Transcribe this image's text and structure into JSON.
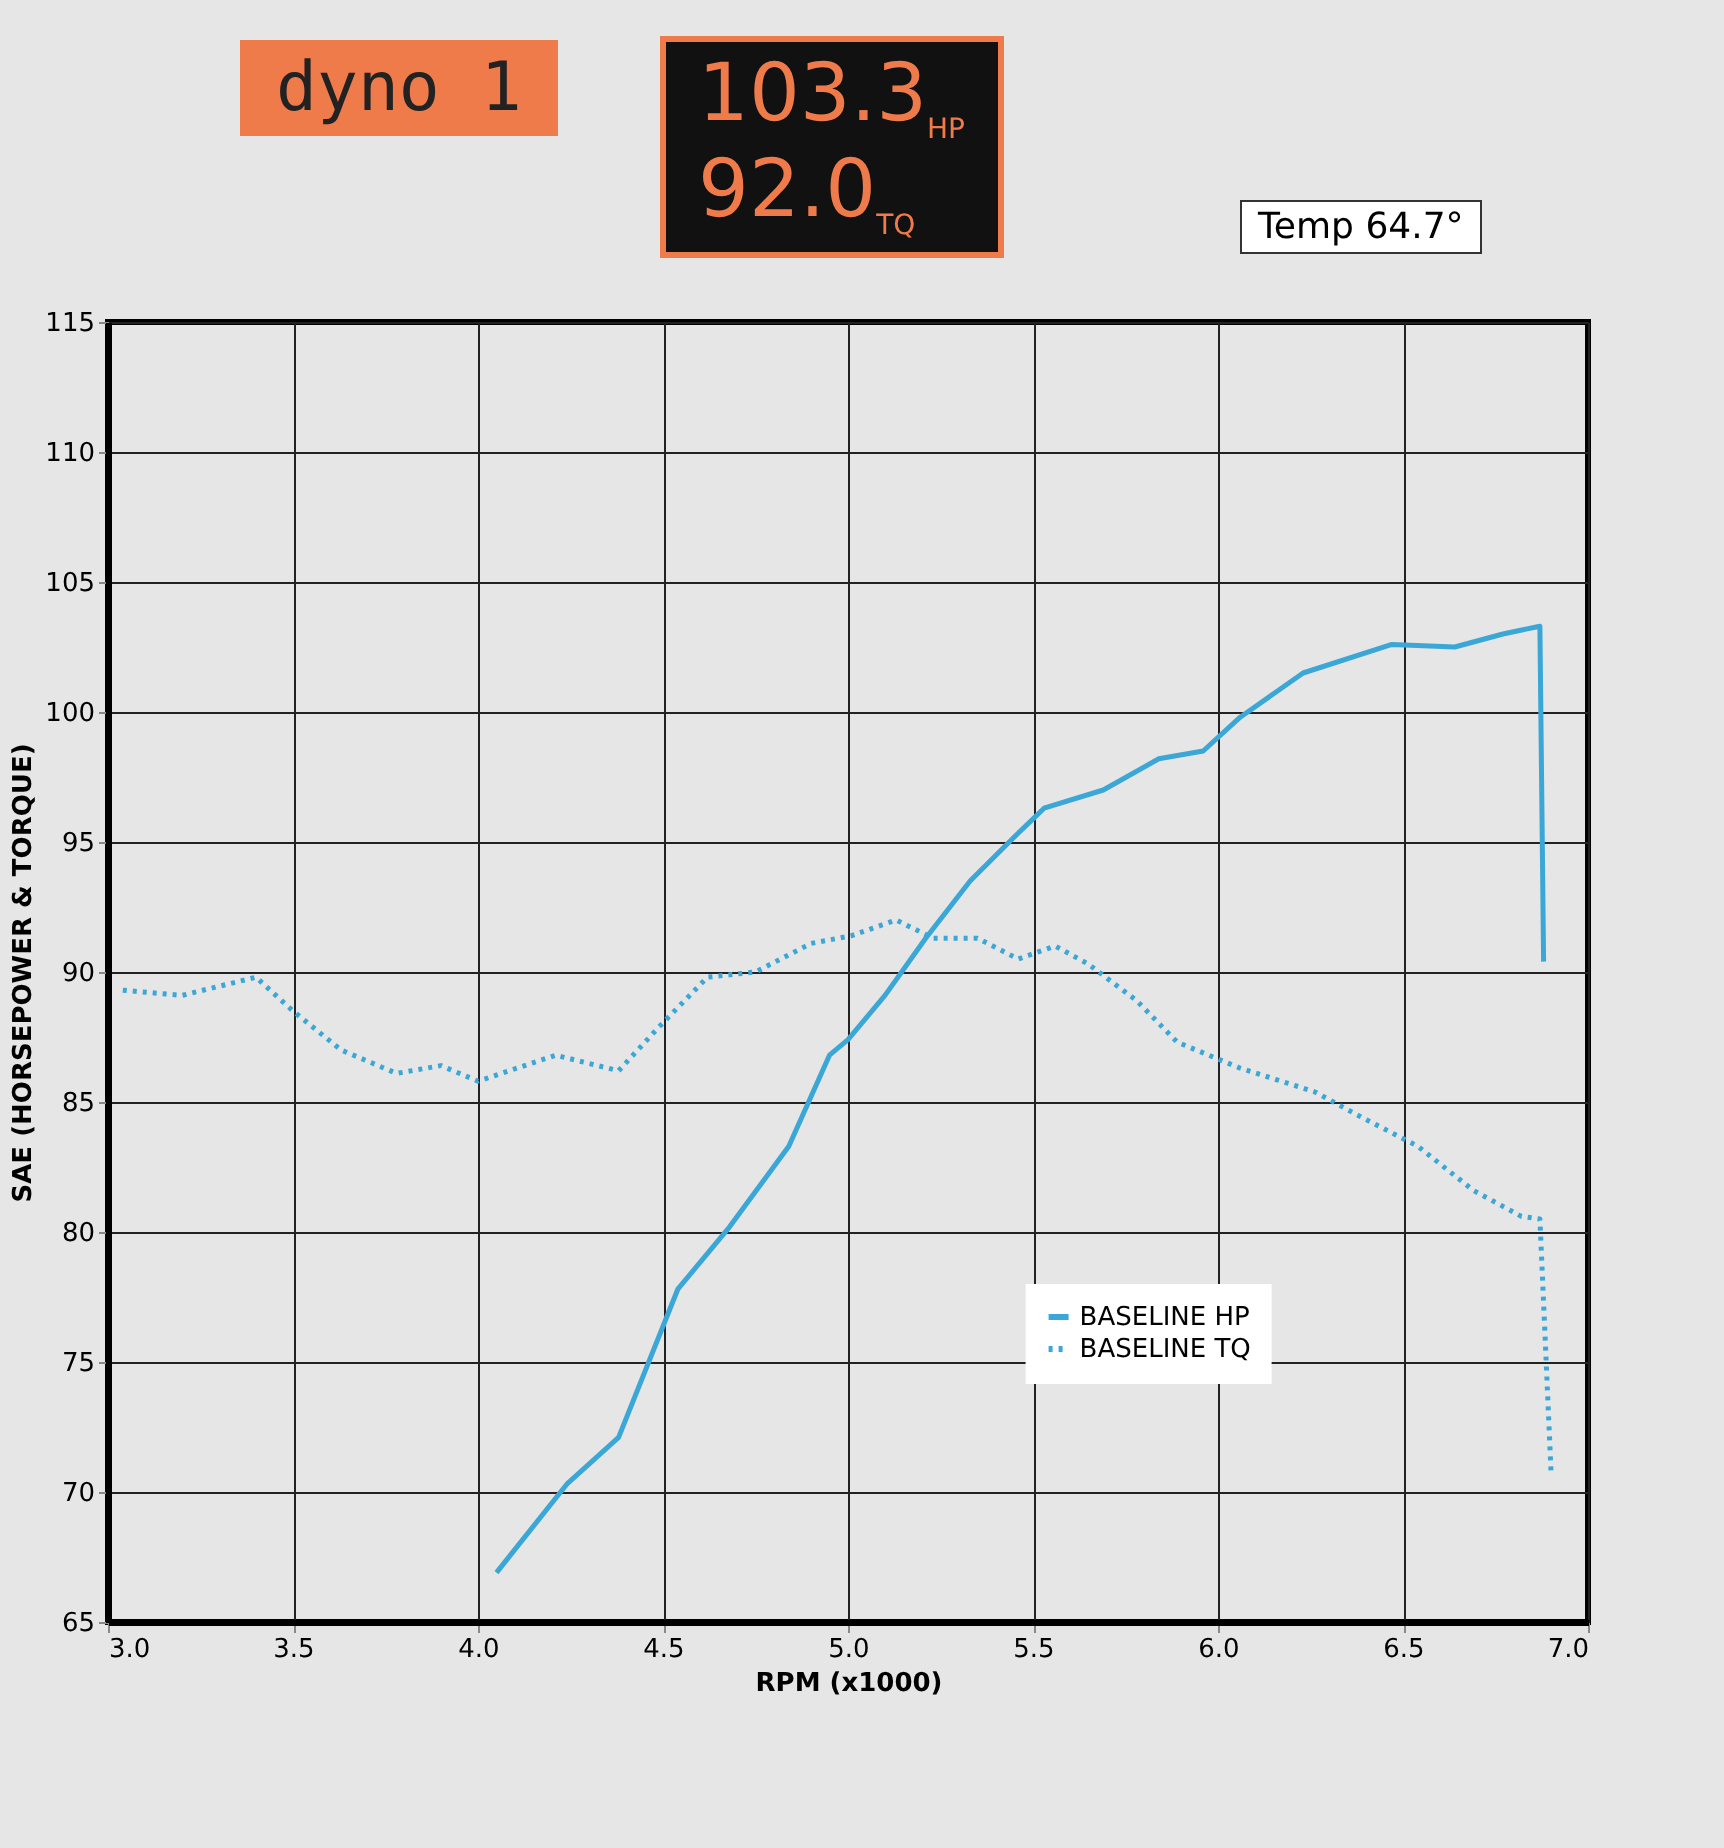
{
  "chart_data": {
    "type": "line",
    "title": "dyno 1",
    "annotations": [
      "103.3$_{HP}$",
      "92.0$_{TQ}$",
      "Temp 64.7°"
    ],
    "xlabel": "RPM (x1000)",
    "ylabel": "SAE (HORSEPOWER & TORQUE)",
    "xlim": [
      3,
      7
    ],
    "xticks": [
      {
        "value": 3,
        "label": "3.0"
      },
      {
        "value": 3.5,
        "label": "3.5"
      },
      {
        "value": 4,
        "label": "4.0"
      },
      {
        "value": 4.5,
        "label": "4.5"
      },
      {
        "value": 5,
        "label": "5.0"
      },
      {
        "value": 5.5,
        "label": "5.5"
      },
      {
        "value": 6,
        "label": "6.0"
      },
      {
        "value": 6.5,
        "label": "6.5"
      },
      {
        "value": 7,
        "label": "7.0"
      }
    ],
    "ylim": [
      65,
      115
    ],
    "yticks": [
      65,
      70,
      75,
      80,
      85,
      90,
      95,
      100,
      105,
      110,
      115
    ],
    "grid": true,
    "legend": "bottom right",
    "series": [
      {
        "name": "BASELINE HP",
        "color": "#3ba7d6",
        "line_style": "solid",
        "x": [
          4.05,
          4.24,
          4.38,
          4.54,
          4.68,
          4.84,
          4.95,
          5.0,
          5.1,
          5.21,
          5.33,
          5.45,
          5.53,
          5.69,
          5.84,
          5.96,
          6.06,
          6.23,
          6.47,
          6.64,
          6.77,
          6.87,
          6.88
        ],
        "values": [
          66.9,
          70.3,
          72.1,
          77.8,
          80.2,
          83.3,
          86.8,
          87.4,
          89.1,
          91.3,
          93.5,
          95.2,
          96.3,
          97.0,
          98.2,
          98.5,
          99.8,
          101.5,
          102.6,
          102.5,
          103.0,
          103.3,
          90.4
        ]
      },
      {
        "name": "BASELINE TQ",
        "color": "#3ba7d6",
        "line_style": "dotted",
        "x": [
          3.04,
          3.2,
          3.4,
          3.5,
          3.63,
          3.78,
          3.9,
          4.0,
          4.21,
          4.38,
          4.49,
          4.62,
          4.75,
          4.9,
          5.01,
          5.13,
          5.23,
          5.35,
          5.46,
          5.56,
          5.65,
          5.78,
          5.89,
          6.06,
          6.26,
          6.39,
          6.54,
          6.69,
          6.82,
          6.87,
          6.9
        ],
        "values": [
          89.3,
          89.1,
          89.8,
          88.5,
          87.0,
          86.1,
          86.4,
          85.8,
          86.8,
          86.2,
          87.9,
          89.8,
          90.0,
          91.1,
          91.4,
          92.0,
          91.3,
          91.3,
          90.5,
          91.0,
          90.3,
          88.9,
          87.3,
          86.3,
          85.4,
          84.4,
          83.3,
          81.6,
          80.6,
          80.5,
          70.8
        ]
      }
    ]
  }
}
